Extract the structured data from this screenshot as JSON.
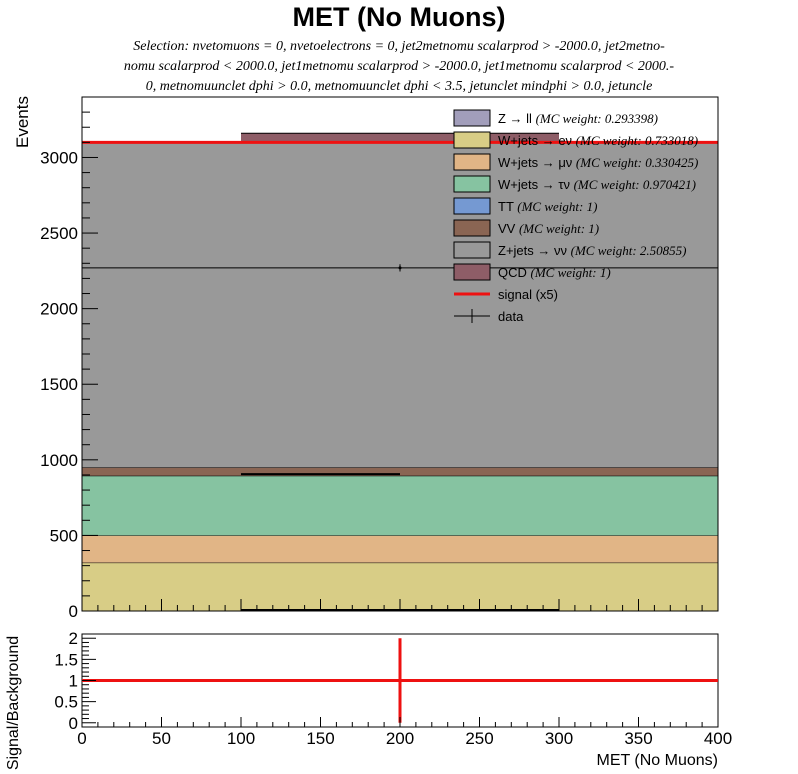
{
  "title": "MET (No Muons)",
  "selection_lines": [
    "Selection: nvetomuons = 0, nvetoelectrons = 0, jet2metnomu scalarprod > -2000.0, jet2metno-",
    "nomu scalarprod < 2000.0, jet1metnomu scalarprod > -2000.0, jet1metnomu scalarprod < 2000.-",
    "0, metnomuunclet dphi > 0.0, metnomuunclet dphi < 3.5, jetunclet mindphi > 0.0, jetuncle"
  ],
  "chart_data": [
    {
      "type": "bar",
      "stacked": true,
      "ylabel": "Events",
      "xlim": [
        0,
        400
      ],
      "ylim": [
        0,
        3400
      ],
      "yticks": [
        0,
        500,
        1000,
        1500,
        2000,
        2500,
        3000
      ],
      "bin_edges": [
        0,
        400
      ],
      "series": [
        {
          "name": "W+jets → eν",
          "weight": "(MC weight: 0.733018)",
          "color": "#d8cd86",
          "values": [
            320
          ]
        },
        {
          "name": "W+jets → μν",
          "weight": "(MC weight: 0.330425)",
          "color": "#e1b586",
          "values": [
            180
          ]
        },
        {
          "name": "W+jets → τν",
          "weight": "(MC weight: 0.970421)",
          "color": "#86c3a1",
          "values": [
            395
          ]
        },
        {
          "name": "TT",
          "weight": "(MC weight: 1)",
          "color": "#7599d2",
          "values": [
            0
          ]
        },
        {
          "name": "VV",
          "weight": "(MC weight: 1)",
          "color": "#8a6553",
          "values": [
            55
          ]
        },
        {
          "name": "Z+jets → νν",
          "weight": "(MC weight: 2.50855)",
          "color": "#999999",
          "values": [
            2150
          ]
        },
        {
          "name": "QCD",
          "weight": "(MC weight: 1)",
          "color": "#8e5d67",
          "values": [
            0
          ]
        },
        {
          "name": "Z → ll",
          "weight": "(MC weight: 0.293398)",
          "color": "#a29ebb",
          "values": [
            0
          ]
        }
      ],
      "qcd_segment": {
        "x": [
          100,
          300
        ],
        "value": 3160
      },
      "signal": {
        "name": "signal (x5)",
        "color": "#ee1111",
        "value": 3100
      },
      "data": {
        "name": "data",
        "x": 200,
        "y": 2270,
        "yerr": 48
      },
      "legend_order": [
        "Z → ll",
        "W+jets → eν",
        "W+jets → μν",
        "W+jets → τν",
        "TT",
        "VV",
        "Z+jets → νν",
        "QCD",
        "signal (x5)",
        "data"
      ],
      "legend_position": "top-right"
    },
    {
      "type": "line",
      "ylabel": "Signal/Background",
      "xlabel": "MET (No Muons)",
      "xlim": [
        0,
        400
      ],
      "ylim": [
        -0.1,
        2.1
      ],
      "yticks": [
        0,
        0.5,
        1,
        1.5,
        2
      ],
      "xticks": [
        0,
        50,
        100,
        150,
        200,
        250,
        300,
        350,
        400
      ],
      "ratio": {
        "x": [
          0,
          400
        ],
        "y": 1.0,
        "color": "#ee1111"
      },
      "vline": {
        "x": 200,
        "y_range": [
          0,
          2
        ],
        "color": "#ee1111"
      }
    }
  ]
}
